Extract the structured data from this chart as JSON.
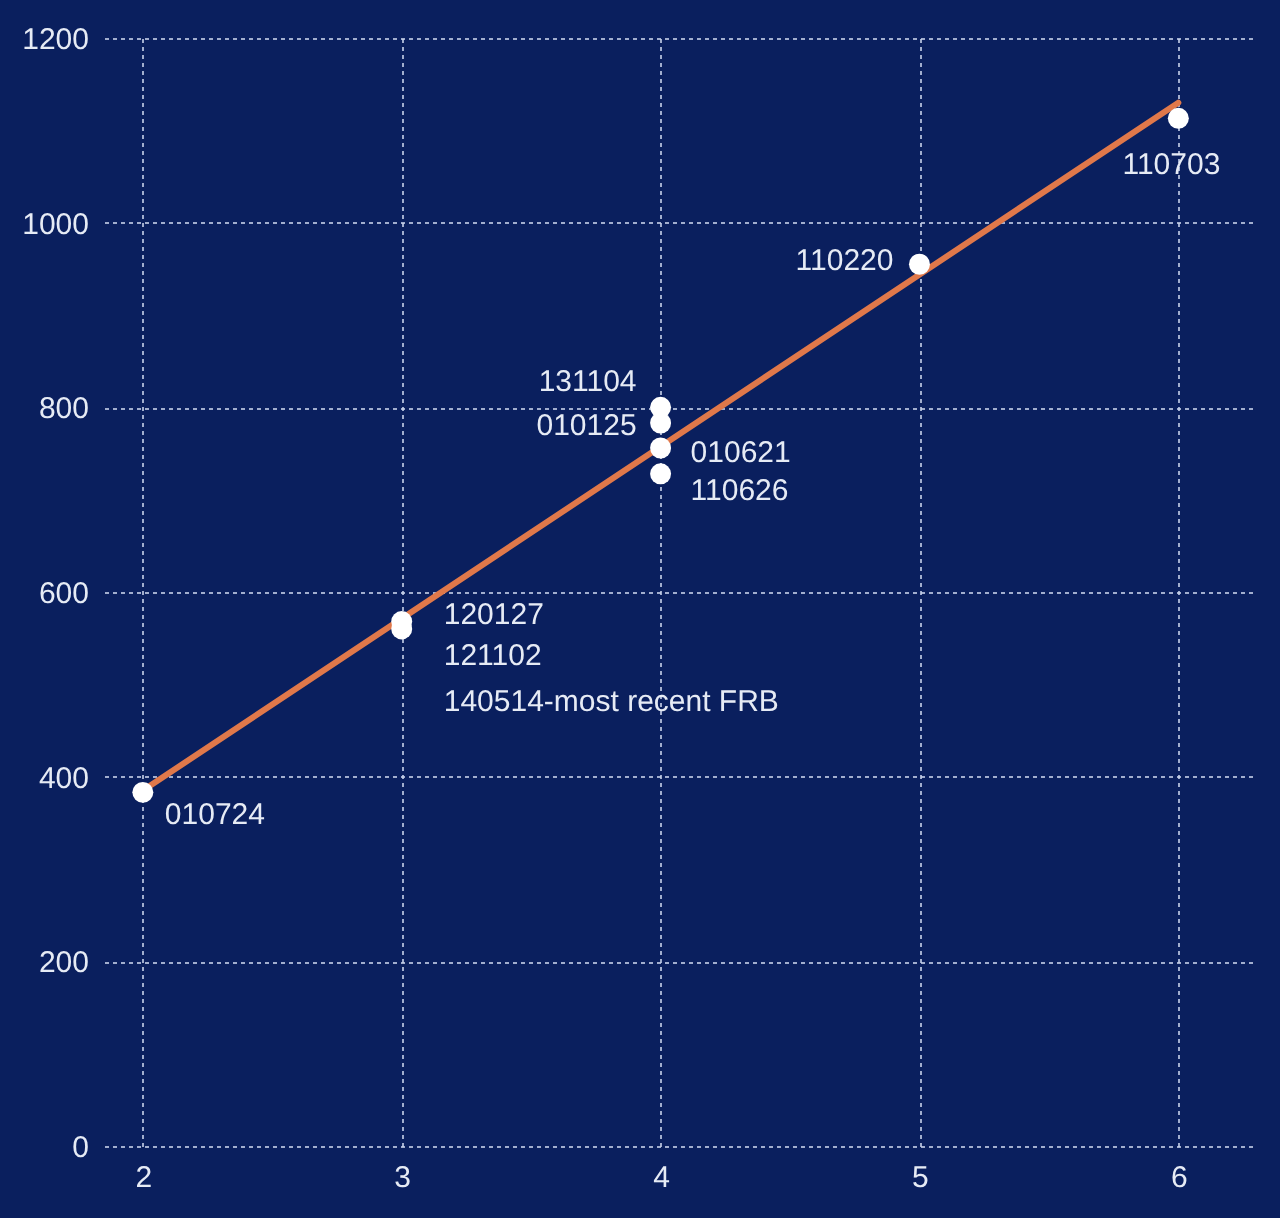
{
  "chart_data": {
    "type": "scatter",
    "xlim": [
      1.85,
      6.3
    ],
    "ylim": [
      0,
      1200
    ],
    "xticks": [
      2,
      3,
      4,
      5,
      6
    ],
    "yticks": [
      0,
      200,
      400,
      600,
      800,
      1000,
      1200
    ],
    "grid": true,
    "marker": "circle",
    "series": [
      {
        "type": "line",
        "color": "#e0784a",
        "x": [
          2,
          6
        ],
        "values": [
          385,
          1130
        ],
        "marker": "none"
      },
      {
        "color": "#ffffff",
        "x": [
          2,
          3,
          3,
          4,
          4,
          4,
          4,
          5,
          6
        ],
        "values": [
          383,
          568,
          560,
          800,
          783,
          756,
          728,
          955,
          1113
        ]
      }
    ],
    "annotations": [
      {
        "text": "131104",
        "x": 4,
        "y": 800
      },
      {
        "text": "010125",
        "x": 4,
        "y": 783
      },
      {
        "text": "010621",
        "x": 4,
        "y": 756
      },
      {
        "text": "110626",
        "x": 4,
        "y": 728
      },
      {
        "text": "120127",
        "x": 3,
        "y": 568
      },
      {
        "text": "121102",
        "x": 3,
        "y": 560
      },
      {
        "text": "140514-most recent FRB",
        "x": 3,
        "y": 560
      },
      {
        "text": "010724",
        "x": 2,
        "y": 383
      },
      {
        "text": "110220",
        "x": 5,
        "y": 955
      },
      {
        "text": "110703",
        "x": 6,
        "y": 1113
      }
    ]
  }
}
